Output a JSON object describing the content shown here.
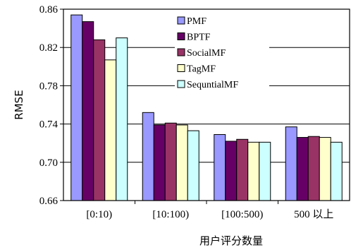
{
  "chart_data": {
    "type": "bar",
    "title": "",
    "xlabel": "用户评分数量",
    "ylabel": "RMSE",
    "ylim": [
      0.66,
      0.86
    ],
    "yticks": [
      "0.66",
      "0.70",
      "0.74",
      "0.78",
      "0.82",
      "0.86"
    ],
    "categories": [
      "[0:10)",
      "[10:100)",
      "[100:500)",
      "500 以上"
    ],
    "series": [
      {
        "name": "PMF",
        "color": "#9999ff",
        "values": [
          0.854,
          0.752,
          0.729,
          0.737
        ]
      },
      {
        "name": "BPTF",
        "color": "#660066",
        "values": [
          0.847,
          0.739,
          0.722,
          0.726
        ]
      },
      {
        "name": "SocialMF",
        "color": "#993366",
        "values": [
          0.828,
          0.741,
          0.724,
          0.727
        ]
      },
      {
        "name": "TagMF",
        "color": "#ffffcc",
        "values": [
          0.807,
          0.739,
          0.721,
          0.726
        ]
      },
      {
        "name": "SequntialMF",
        "color": "#ccffff",
        "values": [
          0.83,
          0.733,
          0.721,
          0.721
        ]
      }
    ],
    "gridlines": [
      0.7,
      0.74,
      0.78,
      0.82
    ],
    "legend_position": "top-right (inside plot)"
  }
}
